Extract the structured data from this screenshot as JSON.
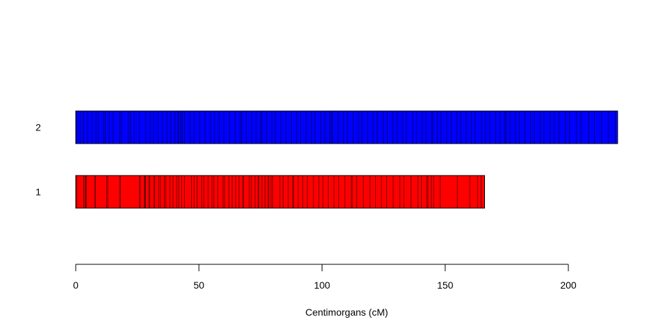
{
  "chart_data": {
    "type": "bar",
    "title": "",
    "xlabel": "Centimorgans (cM)",
    "ylabel": "",
    "xlim": [
      0,
      220
    ],
    "x_ticks": [
      0,
      50,
      100,
      150,
      200
    ],
    "x_tick_labels": [
      "0",
      "50",
      "100",
      "150",
      "200"
    ],
    "grid": false,
    "legend": "none",
    "series": [
      {
        "name": "1",
        "length": 166,
        "color": "#ff0000",
        "markers": [
          0.5,
          3.2,
          3.8,
          4.0,
          4.3,
          7.8,
          8.1,
          12.6,
          13.0,
          17.8,
          18.2,
          25.9,
          26.2,
          27.9,
          28.1,
          28.3,
          29.7,
          30.1,
          31.8,
          32.1,
          33.7,
          34.4,
          36.0,
          36.6,
          38.3,
          39.5,
          41.0,
          41.8,
          43.0,
          44.2,
          47.0,
          48.1,
          49.3,
          51.2,
          52.1,
          53.7,
          55.3,
          56.1,
          57.7,
          59.8,
          60.4,
          62.2,
          63.5,
          64.9,
          66.3,
          67.8,
          68.2,
          70.5,
          71.3,
          72.8,
          74.0,
          74.4,
          75.6,
          76.9,
          78.1,
          78.4,
          79.3,
          80.0,
          82.9,
          84.2,
          86.3,
          88.1,
          88.5,
          90.3,
          92.2,
          94.0,
          96.5,
          98.7,
          100.4,
          102.5,
          104.9,
          106.7,
          109.2,
          111.8,
          112.3,
          114.1,
          116.8,
          119.4,
          121.7,
          124.1,
          126.2,
          128.9,
          131.6,
          133.2,
          136.1,
          139.0,
          140.3,
          142.5,
          143.0,
          144.4,
          145.3,
          148.0,
          154.9,
          160.0,
          163.1,
          164.6
        ]
      },
      {
        "name": "2",
        "length": 220,
        "color": "#0000ff",
        "markers": [
          0.5,
          1.8,
          3.2,
          4.8,
          6.6,
          8.2,
          9.1,
          11.3,
          11.9,
          13.6,
          15.2,
          17.9,
          18.6,
          21.4,
          22.1,
          23.7,
          25.9,
          28.5,
          30.2,
          31.6,
          33.4,
          35.2,
          37.1,
          38.6,
          40.3,
          41.5,
          41.9,
          42.7,
          43.3,
          44.1,
          46.4,
          48.0,
          50.3,
          52.5,
          54.7,
          56.2,
          58.3,
          60.1,
          62.4,
          64.7,
          66.8,
          67.4,
          69.2,
          71.5,
          73.3,
          75.1,
          75.6,
          77.4,
          79.6,
          81.0,
          83.2,
          85.4,
          87.6,
          89.7,
          91.3,
          93.5,
          95.8,
          97.1,
          99.4,
          101.2,
          103.1,
          103.6,
          104.2,
          106.5,
          108.7,
          110.3,
          112.6,
          114.8,
          116.2,
          118.5,
          120.7,
          122.4,
          124.8,
          126.5,
          128.7,
          130.4,
          132.6,
          134.2,
          136.8,
          138.3,
          140.7,
          142.2,
          144.5,
          144.9,
          146.8,
          148.3,
          150.6,
          152.4,
          154.7,
          156.3,
          158.5,
          160.7,
          162.2,
          164.8,
          166.4,
          168.1,
          170.5,
          172.3,
          174.2,
          174.7,
          176.3,
          178.6,
          180.1,
          182.4,
          184.7,
          186.2,
          188.5,
          190.1,
          192.6,
          194.3,
          196.2,
          198.8,
          200.5,
          203.2,
          205.1,
          208.3,
          210.6,
          213.5,
          216.2,
          219.0
        ]
      }
    ]
  }
}
